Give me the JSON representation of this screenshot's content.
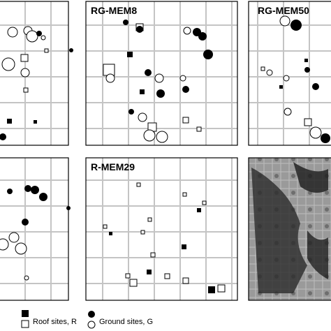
{
  "panels": [
    {
      "title": "RG-MEM8"
    },
    {
      "title": "RG-MEM50"
    },
    {
      "title": "R-MEM29"
    }
  ],
  "legend": {
    "roof": "Roof sites, R",
    "ground": "Ground sites, G"
  }
}
